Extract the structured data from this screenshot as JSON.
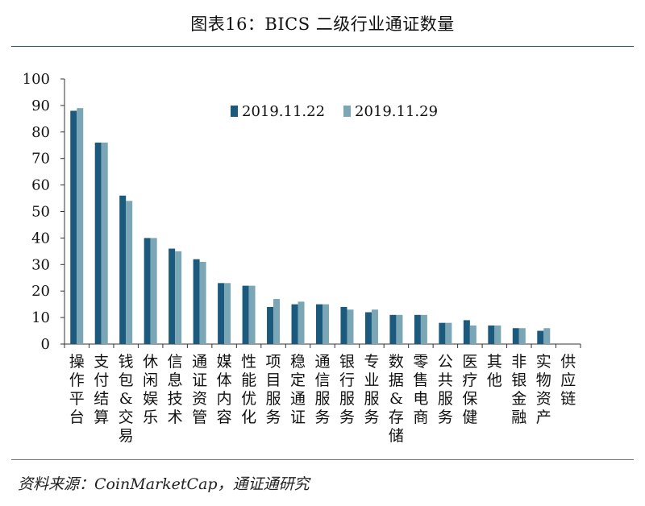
{
  "title": "图表16：BICS 二级行业通证数量",
  "source": "资料来源：CoinMarketCap，通证通研究",
  "colors": {
    "series1": "#1c5a7d",
    "series2": "#7aa6b6",
    "axis": "#333333",
    "text": "#111111"
  },
  "chart_data": {
    "type": "bar",
    "ylim": [
      0,
      100
    ],
    "yticks": [
      0,
      10,
      20,
      30,
      40,
      50,
      60,
      70,
      80,
      90,
      100
    ],
    "legend_position": "top-center",
    "grid": false,
    "categories": [
      "操作平台",
      "支付结算",
      "钱包&交易",
      "休闲娱乐",
      "信息技术",
      "通证资管",
      "媒体内容",
      "性能优化",
      "项目服务",
      "稳定通证",
      "通信服务",
      "银行服务",
      "专业服务",
      "数据&存储",
      "零售电商",
      "公共服务",
      "医疗保健",
      "其他",
      "非银金融",
      "实物资产",
      "供应链"
    ],
    "series": [
      {
        "name": "2019.11.22",
        "values": [
          88,
          76,
          56,
          40,
          36,
          32,
          23,
          22,
          14,
          15,
          15,
          14,
          12,
          11,
          11,
          8,
          9,
          7,
          6,
          5,
          0
        ]
      },
      {
        "name": "2019.11.29",
        "values": [
          89,
          76,
          54,
          40,
          35,
          31,
          23,
          22,
          17,
          16,
          15,
          13,
          13,
          11,
          11,
          8,
          7,
          7,
          6,
          6,
          0
        ]
      }
    ]
  }
}
